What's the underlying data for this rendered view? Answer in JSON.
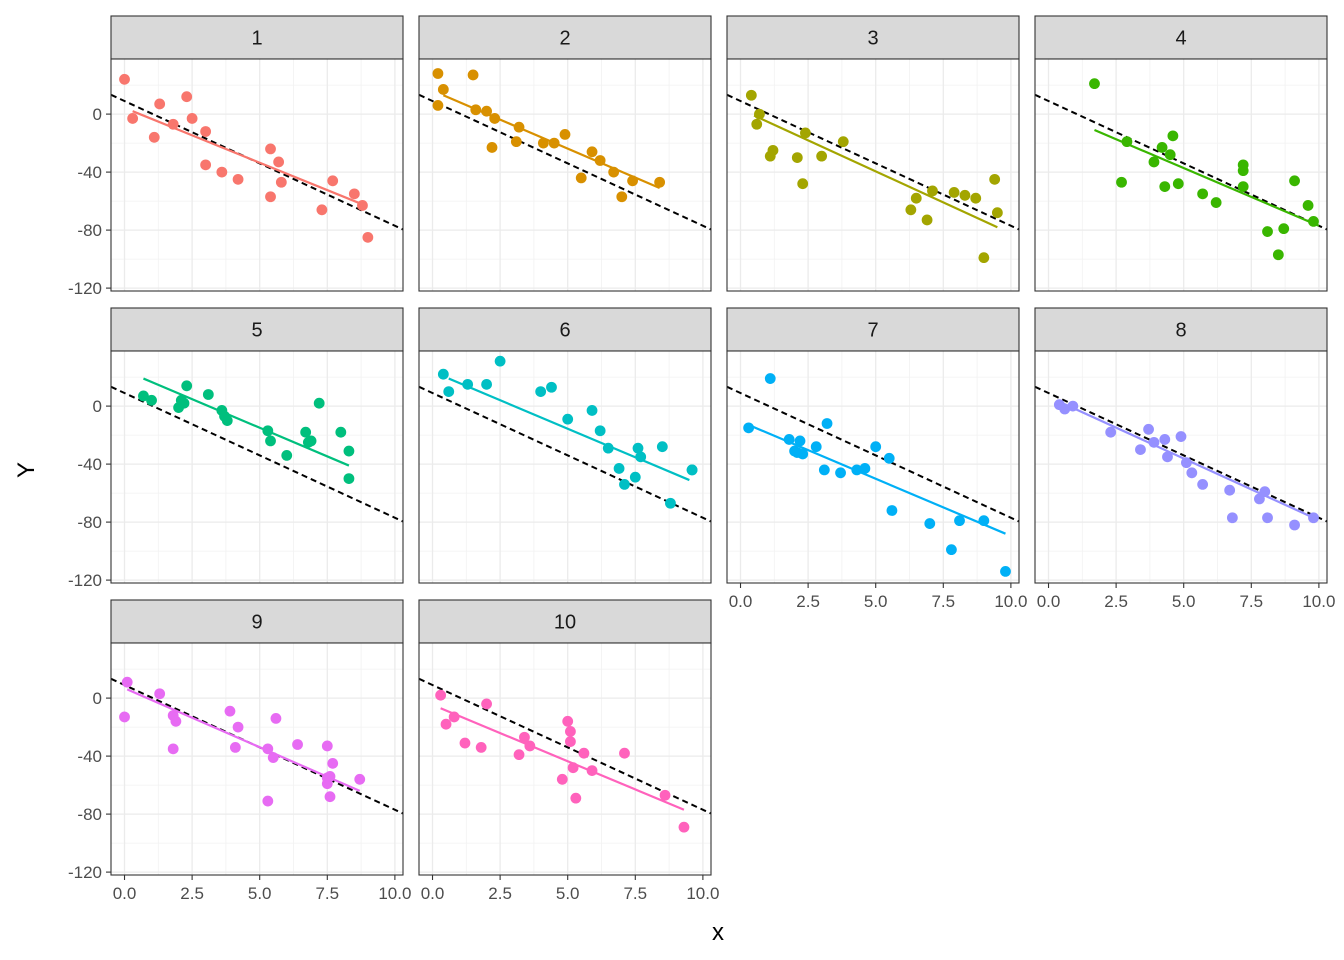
{
  "chart_data": {
    "type": "scatter",
    "xlabel": "x",
    "ylabel": "Y",
    "xlim": [
      -0.5,
      10.3
    ],
    "ylim": [
      -122,
      38
    ],
    "x_ticks": [
      0.0,
      2.5,
      5.0,
      7.5,
      10.0
    ],
    "x_tick_labels": [
      "0.0",
      "2.5",
      "5.0",
      "7.5",
      "10.0"
    ],
    "y_ticks": [
      0,
      -40,
      -80,
      -120
    ],
    "y_tick_labels": [
      "0",
      "-40",
      "-80",
      "-120"
    ],
    "grid": true,
    "reference_line": {
      "style": "dashed",
      "color": "#000000",
      "intercept": 9,
      "slope": -8.6
    },
    "panels": [
      {
        "label": "1",
        "color": "#F8766D",
        "fit": {
          "x": [
            0.3,
            8.9
          ],
          "y": [
            2,
            -63
          ]
        },
        "x": [
          0.0,
          0.3,
          1.1,
          1.3,
          1.8,
          2.3,
          2.5,
          3.0,
          3.0,
          3.6,
          4.2,
          5.4,
          5.4,
          5.7,
          5.8,
          7.3,
          7.7,
          8.5,
          8.8,
          9.0
        ],
        "y": [
          24,
          -3,
          -16,
          7,
          -7,
          12,
          -3,
          -12,
          -35,
          -40,
          -45,
          -24,
          -57,
          -33,
          -47,
          -66,
          -46,
          -55,
          -63,
          -85
        ]
      },
      {
        "label": "2",
        "color": "#D89000",
        "fit": {
          "x": [
            0.4,
            8.4
          ],
          "y": [
            13,
            -51
          ]
        },
        "x": [
          0.2,
          0.2,
          0.4,
          1.5,
          1.6,
          2.0,
          2.2,
          2.3,
          3.1,
          3.2,
          4.1,
          4.5,
          4.9,
          5.5,
          5.9,
          6.2,
          6.7,
          7.0,
          7.4,
          8.4
        ],
        "y": [
          28,
          6,
          17,
          27,
          3,
          2,
          -23,
          -3,
          -19,
          -9,
          -20,
          -20,
          -14,
          -44,
          -26,
          -32,
          -40,
          -57,
          -46,
          -47
        ]
      },
      {
        "label": "3",
        "color": "#A3A500",
        "fit": {
          "x": [
            0.5,
            9.5
          ],
          "y": [
            -1,
            -78
          ]
        },
        "x": [
          0.4,
          0.6,
          0.7,
          1.1,
          1.2,
          2.1,
          2.3,
          2.4,
          3.0,
          3.8,
          6.3,
          6.5,
          6.9,
          7.1,
          7.9,
          8.3,
          8.7,
          9.0,
          9.4,
          9.5
        ],
        "y": [
          13,
          -7,
          0,
          -29,
          -25,
          -30,
          -48,
          -13,
          -29,
          -19,
          -66,
          -58,
          -73,
          -53,
          -54,
          -56,
          -58,
          -99,
          -45,
          -68
        ]
      },
      {
        "label": "4",
        "color": "#39B600",
        "fit": {
          "x": [
            1.7,
            10.0
          ],
          "y": [
            -11,
            -77
          ]
        },
        "x": [
          1.7,
          2.7,
          2.9,
          3.9,
          4.2,
          4.3,
          4.5,
          4.6,
          4.8,
          5.7,
          6.2,
          7.2,
          7.2,
          7.2,
          8.1,
          8.5,
          8.7,
          9.1,
          9.6,
          9.8
        ],
        "y": [
          21,
          -47,
          -19,
          -33,
          -23,
          -50,
          -28,
          -15,
          -48,
          -55,
          -61,
          -35,
          -39,
          -50,
          -81,
          -97,
          -79,
          -46,
          -63,
          -74
        ]
      },
      {
        "label": "5",
        "color": "#00BF7D",
        "fit": {
          "x": [
            0.7,
            8.3
          ],
          "y": [
            19,
            -41
          ]
        },
        "x": [
          0.7,
          1.0,
          2.0,
          2.1,
          2.2,
          2.3,
          3.1,
          3.6,
          3.7,
          3.8,
          5.3,
          5.4,
          6.0,
          6.7,
          6.8,
          6.9,
          7.2,
          8.0,
          8.3,
          8.3
        ],
        "y": [
          7,
          4,
          -1,
          4,
          2,
          14,
          8,
          -3,
          -7,
          -10,
          -17,
          -24,
          -34,
          -18,
          -25,
          -24,
          2,
          -18,
          -31,
          -50
        ]
      },
      {
        "label": "6",
        "color": "#00BFC4",
        "fit": {
          "x": [
            0.6,
            9.5
          ],
          "y": [
            19,
            -51
          ]
        },
        "x": [
          0.4,
          0.6,
          1.3,
          2.0,
          2.5,
          4.0,
          4.4,
          5.0,
          5.9,
          6.2,
          6.5,
          6.9,
          7.1,
          7.5,
          7.6,
          7.7,
          8.5,
          8.8,
          9.6,
          9.6
        ],
        "y": [
          22,
          10,
          15,
          15,
          31,
          10,
          13,
          -9,
          -3,
          -17,
          -29,
          -43,
          -54,
          -49,
          -29,
          -35,
          -28,
          -67,
          -44,
          -44
        ]
      },
      {
        "label": "7",
        "color": "#00B0F6",
        "fit": {
          "x": [
            0.3,
            9.8
          ],
          "y": [
            -13,
            -88
          ]
        },
        "x": [
          0.3,
          1.1,
          1.8,
          2.0,
          2.1,
          2.2,
          2.3,
          2.8,
          3.1,
          3.2,
          3.7,
          4.3,
          4.6,
          5.0,
          5.5,
          5.6,
          7.0,
          7.8,
          8.1,
          9.0,
          9.8
        ],
        "y": [
          -15,
          19,
          -23,
          -31,
          -32,
          -24,
          -33,
          -28,
          -44,
          -12,
          -46,
          -44,
          -43,
          -28,
          -36,
          -72,
          -81,
          -99,
          -79,
          -79,
          -114
        ]
      },
      {
        "label": "8",
        "color": "#9590FF",
        "fit": {
          "x": [
            0.4,
            9.8
          ],
          "y": [
            3,
            -77
          ]
        },
        "x": [
          0.4,
          0.6,
          0.9,
          2.3,
          3.4,
          3.7,
          3.9,
          4.3,
          4.4,
          4.9,
          5.1,
          5.3,
          5.7,
          6.7,
          6.8,
          7.8,
          8.0,
          8.1,
          9.1,
          9.8
        ],
        "y": [
          1,
          -2,
          0,
          -18,
          -30,
          -16,
          -25,
          -23,
          -35,
          -21,
          -39,
          -46,
          -54,
          -58,
          -77,
          -64,
          -59,
          -77,
          -82,
          -77
        ]
      },
      {
        "label": "9",
        "color": "#E76BF3",
        "fit": {
          "x": [
            0.1,
            8.7
          ],
          "y": [
            6,
            -64
          ]
        },
        "x": [
          0.1,
          0.0,
          1.3,
          1.8,
          1.8,
          1.9,
          3.9,
          4.1,
          4.2,
          5.3,
          5.3,
          5.5,
          5.6,
          6.4,
          7.5,
          7.5,
          7.6,
          7.7,
          8.7,
          7.5,
          7.6
        ],
        "y": [
          11,
          -13,
          3,
          -12,
          -35,
          -16,
          -9,
          -34,
          -20,
          -35,
          -71,
          -41,
          -14,
          -32,
          -33,
          -59,
          -68,
          -45,
          -56,
          -55,
          -54
        ]
      },
      {
        "label": "10",
        "color": "#FF62BC",
        "fit": {
          "x": [
            0.3,
            9.3
          ],
          "y": [
            -7,
            -77
          ]
        },
        "x": [
          0.3,
          0.5,
          0.8,
          1.2,
          1.8,
          2.0,
          3.2,
          3.4,
          3.6,
          4.8,
          5.0,
          5.1,
          5.1,
          5.2,
          5.3,
          5.6,
          5.9,
          7.1,
          8.6,
          9.3
        ],
        "y": [
          2,
          -18,
          -13,
          -31,
          -34,
          -4,
          -39,
          -27,
          -33,
          -56,
          -16,
          -30,
          -23,
          -48,
          -69,
          -38,
          -50,
          -38,
          -67,
          -89
        ]
      }
    ]
  }
}
